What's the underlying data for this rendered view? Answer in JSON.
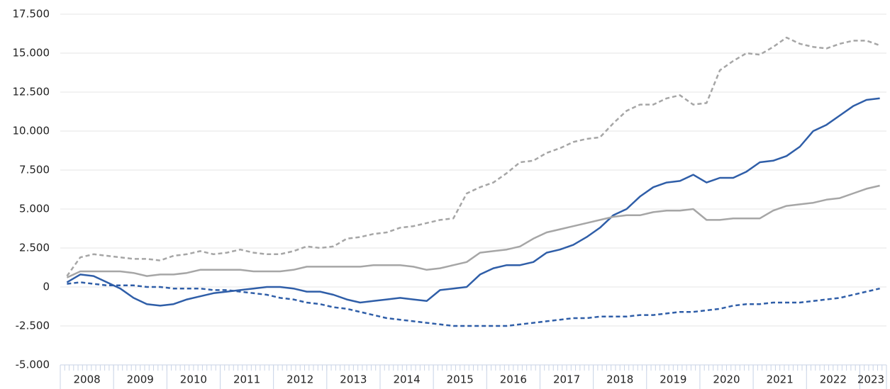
{
  "chart_data": {
    "type": "line",
    "categories": [
      null,
      "2008",
      null,
      null,
      null,
      "2009",
      null,
      null,
      null,
      "2010",
      null,
      null,
      null,
      "2011",
      null,
      null,
      null,
      "2012",
      null,
      null,
      null,
      "2013",
      null,
      null,
      null,
      "2014",
      null,
      null,
      null,
      "2015",
      null,
      null,
      null,
      "2016",
      null,
      null,
      null,
      "2017",
      null,
      null,
      null,
      "2018",
      null,
      null,
      null,
      "2019",
      null,
      null,
      null,
      "2020",
      null,
      null,
      null,
      "2021",
      null,
      null,
      null,
      "2022",
      null,
      null,
      null,
      "2023"
    ],
    "series": [
      {
        "color": "#a6a6a6",
        "dash": true,
        "values": [
          700,
          1900,
          2100,
          2000,
          1900,
          1800,
          1800,
          1700,
          2000,
          2100,
          2300,
          2100,
          2200,
          2400,
          2200,
          2100,
          2100,
          2300,
          2600,
          2500,
          2600,
          3100,
          3200,
          3400,
          3500,
          3800,
          3900,
          4100,
          4300,
          4400,
          6000,
          6400,
          6700,
          7300,
          8000,
          8100,
          8600,
          8900,
          9300,
          9500,
          9600,
          10500,
          11300,
          11700,
          11700,
          12100,
          12300,
          11700,
          11800,
          13900,
          14500,
          15000,
          14900,
          15400,
          16000,
          15600,
          15400,
          15300,
          15600,
          15800,
          15800,
          15500
        ]
      },
      {
        "color": "#2f5ea8",
        "dash": false,
        "values": [
          300,
          800,
          700,
          300,
          -100,
          -700,
          -1100,
          -1200,
          -1100,
          -800,
          -600,
          -400,
          -300,
          -200,
          -100,
          0,
          0,
          -100,
          -300,
          -300,
          -500,
          -800,
          -1000,
          -900,
          -800,
          -700,
          -800,
          -900,
          -200,
          -100,
          0,
          800,
          1200,
          1400,
          1400,
          1600,
          2200,
          2400,
          2700,
          3200,
          3800,
          4600,
          5000,
          5800,
          6400,
          6700,
          6800,
          7200,
          6700,
          7000,
          7000,
          7400,
          8000,
          8100,
          8400,
          9000,
          10000,
          10400,
          11000,
          11600,
          12000,
          12100
        ]
      },
      {
        "color": "#a6a6a6",
        "dash": false,
        "values": [
          600,
          1000,
          1000,
          1000,
          1000,
          900,
          700,
          800,
          800,
          900,
          1100,
          1100,
          1100,
          1100,
          1000,
          1000,
          1000,
          1100,
          1300,
          1300,
          1300,
          1300,
          1300,
          1400,
          1400,
          1400,
          1300,
          1100,
          1200,
          1400,
          1600,
          2200,
          2300,
          2400,
          2600,
          3100,
          3500,
          3700,
          3900,
          4100,
          4300,
          4500,
          4600,
          4600,
          4800,
          4900,
          4900,
          5000,
          4300,
          4300,
          4400,
          4400,
          4400,
          4900,
          5200,
          5300,
          5400,
          5600,
          5700,
          6000,
          6300,
          6500
        ]
      },
      {
        "color": "#2f5ea8",
        "dash": true,
        "values": [
          200,
          300,
          200,
          100,
          100,
          100,
          0,
          0,
          -100,
          -100,
          -100,
          -200,
          -200,
          -300,
          -400,
          -500,
          -700,
          -800,
          -1000,
          -1100,
          -1300,
          -1400,
          -1600,
          -1800,
          -2000,
          -2100,
          -2200,
          -2300,
          -2400,
          -2500,
          -2500,
          -2500,
          -2500,
          -2500,
          -2400,
          -2300,
          -2200,
          -2100,
          -2000,
          -2000,
          -1900,
          -1900,
          -1900,
          -1800,
          -1800,
          -1700,
          -1600,
          -1600,
          -1500,
          -1400,
          -1200,
          -1100,
          -1100,
          -1000,
          -1000,
          -1000,
          -900,
          -800,
          -700,
          -500,
          -300,
          -100
        ]
      }
    ],
    "ylim": [
      -5000,
      17500
    ],
    "yticks": [
      {
        "value": -5000,
        "label": "-5.000"
      },
      {
        "value": -2500,
        "label": "-2.500"
      },
      0,
      {
        "value": 2500,
        "label": "2.500"
      },
      {
        "value": 5000,
        "label": "5.000"
      },
      {
        "value": 7500,
        "label": "7.500"
      },
      {
        "value": 10000,
        "label": "10.000"
      },
      {
        "value": 12500,
        "label": "12.500"
      },
      {
        "value": 15000,
        "label": "15.000"
      },
      {
        "value": 17500,
        "label": "17.500"
      }
    ],
    "grid": true
  }
}
